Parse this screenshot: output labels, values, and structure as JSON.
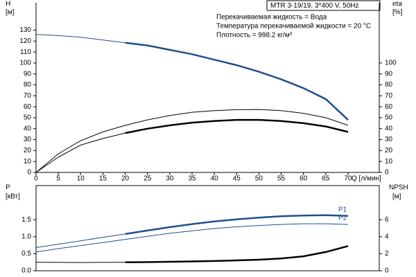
{
  "chart_data": [
    {
      "type": "line",
      "title": "MTR 3-19/19, 3*400 V, 50Hz",
      "annotations": [
        "Перекачиваемая жидкость = Вода",
        "Температура перекачиваемой жидкости = 20 °C",
        "Плотность = 998.2 кг/м³"
      ],
      "ylabel": "H",
      "ylabel_unit": "[м]",
      "y2label": "eta",
      "y2label_unit": "[%]",
      "xlabel": "Q [л/мин]",
      "x": [
        0,
        5,
        10,
        15,
        20,
        25,
        30,
        35,
        40,
        45,
        50,
        55,
        60,
        65,
        70
      ],
      "xlim": [
        0,
        77
      ],
      "xticks": [
        0,
        5,
        10,
        15,
        20,
        25,
        30,
        35,
        40,
        45,
        50,
        55,
        60,
        65,
        70
      ],
      "ylim": [
        0,
        155
      ],
      "yticks": [
        0,
        10,
        20,
        30,
        40,
        50,
        60,
        70,
        80,
        90,
        100,
        110,
        120,
        130
      ],
      "y2lim": [
        0,
        155
      ],
      "y2ticks": [
        0,
        10,
        20,
        30,
        40,
        50,
        60,
        70,
        80,
        90,
        100
      ],
      "series": [
        {
          "color": "#1f4e8c",
          "line_width": 1,
          "values": [
            126,
            125,
            123.5,
            121,
            118.5,
            null,
            null,
            null,
            null,
            null,
            null,
            null,
            null,
            null,
            null
          ]
        },
        {
          "color": "#1f4e8c",
          "line_width": 2.5,
          "values": [
            null,
            null,
            null,
            null,
            118.5,
            116,
            112,
            108,
            103,
            98,
            92,
            85,
            77,
            67,
            48
          ]
        },
        {
          "color": "#000000",
          "line_width": 1,
          "axis": "y2",
          "values": [
            0,
            17,
            29,
            37,
            43,
            48,
            52,
            55,
            56.5,
            57.3,
            57.5,
            56.5,
            54,
            50,
            43
          ]
        },
        {
          "color": "#000000",
          "line_width": 1,
          "axis": "y2",
          "values": [
            0,
            14,
            25,
            31,
            36,
            null,
            null,
            null,
            null,
            null,
            null,
            null,
            null,
            null,
            null
          ]
        },
        {
          "color": "#000000",
          "line_width": 2.5,
          "axis": "y2",
          "values": [
            null,
            null,
            null,
            null,
            36,
            40,
            43,
            45.5,
            47,
            48,
            48,
            47,
            45,
            42,
            37
          ]
        }
      ]
    },
    {
      "type": "line",
      "ylabel": "P",
      "ylabel_unit": "[кВт]",
      "y2label": "NPSH",
      "y2label_unit": "[м]",
      "x": [
        0,
        5,
        10,
        15,
        20,
        25,
        30,
        35,
        40,
        45,
        50,
        55,
        60,
        65,
        70
      ],
      "xlim": [
        0,
        77
      ],
      "ylim": [
        0,
        2.5
      ],
      "yticks": [
        {
          "value": 0,
          "label": "0.0"
        },
        0.5,
        {
          "value": 1,
          "label": "1.0"
        },
        1.5
      ],
      "y2lim": [
        0,
        10
      ],
      "y2ticks": [
        0,
        2,
        4,
        6
      ],
      "series": [
        {
          "color": "#1f4e8c",
          "line_width": 1,
          "values": [
            0.68,
            0.78,
            0.88,
            0.98,
            1.08,
            null,
            null,
            null,
            null,
            null,
            null,
            null,
            null,
            null,
            null
          ]
        },
        {
          "name": "P1",
          "color": "#1f4e8c",
          "line_width": 2.5,
          "values": [
            null,
            null,
            null,
            null,
            1.08,
            1.18,
            1.28,
            1.37,
            1.45,
            1.51,
            1.56,
            1.6,
            1.62,
            1.63,
            1.61
          ]
        },
        {
          "name": "P2",
          "color": "#1f4e8c",
          "line_width": 1,
          "values": [
            0.55,
            0.65,
            0.74,
            0.83,
            0.92,
            1.01,
            1.1,
            1.17,
            1.24,
            1.29,
            1.33,
            1.36,
            1.38,
            1.38,
            1.36
          ]
        },
        {
          "color": "#000000",
          "line_width": 1,
          "axis": "y2",
          "values": [
            1.0,
            0.98,
            0.97,
            0.98,
            1.0,
            null,
            null,
            null,
            null,
            null,
            null,
            null,
            null,
            null,
            null
          ]
        },
        {
          "color": "#000000",
          "line_width": 2.5,
          "axis": "y2",
          "values": [
            null,
            null,
            null,
            null,
            1.0,
            1.02,
            1.06,
            1.1,
            1.15,
            1.22,
            1.3,
            1.45,
            1.7,
            2.2,
            2.9
          ]
        }
      ]
    }
  ]
}
